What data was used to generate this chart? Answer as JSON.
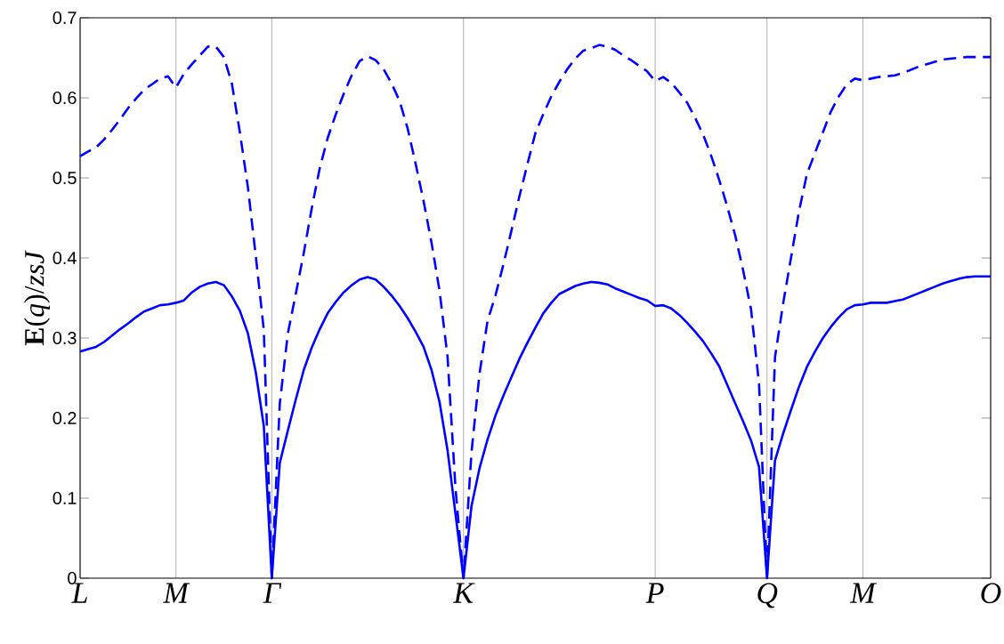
{
  "chart_data": {
    "type": "line",
    "ylabel": "**E**(*q*)/*zsJ*",
    "ylim": [
      0,
      0.7
    ],
    "categories": [
      "L",
      null,
      null,
      null,
      null,
      null,
      null,
      null,
      null,
      null,
      null,
      null,
      "M",
      null,
      null,
      null,
      null,
      null,
      null,
      null,
      null,
      null,
      null,
      null,
      "Γ",
      null,
      null,
      null,
      null,
      null,
      null,
      null,
      null,
      null,
      null,
      null,
      null,
      null,
      null,
      null,
      null,
      null,
      null,
      null,
      null,
      null,
      null,
      null,
      "K",
      null,
      null,
      null,
      null,
      null,
      null,
      null,
      null,
      null,
      null,
      null,
      null,
      null,
      null,
      null,
      null,
      null,
      null,
      null,
      null,
      null,
      null,
      null,
      "P",
      null,
      null,
      null,
      null,
      null,
      null,
      null,
      null,
      null,
      null,
      null,
      null,
      null,
      "Q",
      null,
      null,
      null,
      null,
      null,
      null,
      null,
      null,
      null,
      null,
      null,
      "M",
      null,
      null,
      null,
      null,
      null,
      null,
      null,
      null,
      null,
      null,
      null,
      null,
      null,
      null,
      null,
      "O"
    ],
    "yticks": [
      0,
      0.1,
      0.2,
      0.3,
      0.4,
      0.5,
      0.6,
      0.7
    ],
    "grid": "x",
    "marker": "none",
    "series": [
      {
        "color": "#0000ff",
        "line_style": "solid",
        "values": [
          0.283,
          0.286,
          0.289,
          0.295,
          0.303,
          0.311,
          0.318,
          0.326,
          0.333,
          0.337,
          0.341,
          0.342,
          0.344,
          0.347,
          0.357,
          0.364,
          0.368,
          0.37,
          0.366,
          0.352,
          0.334,
          0.306,
          0.257,
          0.19,
          0.0,
          0.144,
          0.184,
          0.223,
          0.26,
          0.288,
          0.311,
          0.331,
          0.345,
          0.357,
          0.366,
          0.373,
          0.376,
          0.373,
          0.364,
          0.353,
          0.34,
          0.325,
          0.308,
          0.289,
          0.26,
          0.22,
          0.16,
          0.08,
          0.0,
          0.09,
          0.137,
          0.173,
          0.203,
          0.228,
          0.251,
          0.274,
          0.294,
          0.313,
          0.331,
          0.344,
          0.355,
          0.36,
          0.365,
          0.368,
          0.37,
          0.369,
          0.367,
          0.362,
          0.358,
          0.354,
          0.35,
          0.347,
          0.34,
          0.341,
          0.337,
          0.329,
          0.319,
          0.308,
          0.296,
          0.281,
          0.265,
          0.242,
          0.219,
          0.196,
          0.172,
          0.139,
          0.0,
          0.147,
          0.18,
          0.21,
          0.239,
          0.264,
          0.283,
          0.3,
          0.314,
          0.326,
          0.336,
          0.341,
          0.342,
          0.344,
          0.344,
          0.344,
          0.346,
          0.348,
          0.352,
          0.356,
          0.36,
          0.364,
          0.368,
          0.371,
          0.374,
          0.376,
          0.377,
          0.377,
          0.377
        ]
      },
      {
        "color": "#0000ff",
        "line_style": "dashed",
        "values": [
          0.527,
          0.533,
          0.538,
          0.548,
          0.56,
          0.573,
          0.587,
          0.599,
          0.61,
          0.617,
          0.624,
          0.627,
          0.613,
          0.63,
          0.642,
          0.653,
          0.664,
          0.664,
          0.651,
          0.618,
          0.557,
          0.489,
          0.402,
          0.31,
          0.0,
          0.218,
          0.305,
          0.355,
          0.406,
          0.462,
          0.512,
          0.55,
          0.579,
          0.605,
          0.628,
          0.646,
          0.652,
          0.647,
          0.636,
          0.618,
          0.596,
          0.562,
          0.518,
          0.471,
          0.419,
          0.359,
          0.277,
          0.112,
          0.0,
          0.157,
          0.255,
          0.321,
          0.353,
          0.392,
          0.434,
          0.477,
          0.517,
          0.556,
          0.58,
          0.602,
          0.62,
          0.636,
          0.649,
          0.659,
          0.662,
          0.666,
          0.664,
          0.66,
          0.653,
          0.647,
          0.64,
          0.633,
          0.621,
          0.626,
          0.619,
          0.607,
          0.594,
          0.575,
          0.554,
          0.528,
          0.498,
          0.465,
          0.429,
          0.385,
          0.336,
          0.243,
          0.0,
          0.276,
          0.342,
          0.4,
          0.458,
          0.505,
          0.531,
          0.557,
          0.583,
          0.602,
          0.617,
          0.624,
          0.622,
          0.624,
          0.626,
          0.627,
          0.628,
          0.631,
          0.635,
          0.639,
          0.642,
          0.645,
          0.648,
          0.649,
          0.65,
          0.651,
          0.651,
          0.651,
          0.651
        ]
      }
    ]
  }
}
